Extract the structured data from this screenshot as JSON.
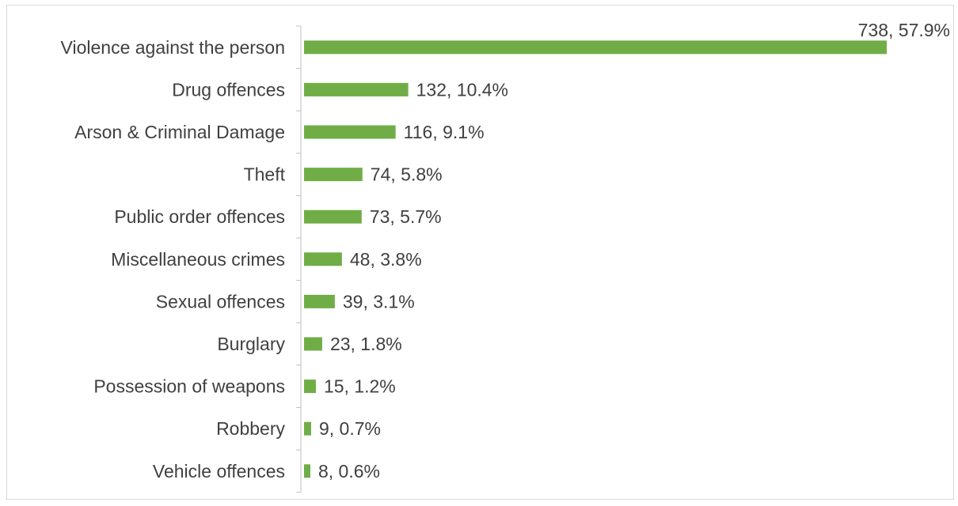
{
  "chart_data": {
    "type": "bar",
    "orientation": "horizontal",
    "title": "",
    "xlabel": "",
    "ylabel": "",
    "categories": [
      "Violence against the person",
      "Drug offences",
      "Arson & Criminal Damage",
      "Theft",
      "Public order offences",
      "Miscellaneous crimes",
      "Sexual offences",
      "Burglary",
      "Possession of weapons",
      "Robbery",
      "Vehicle offences"
    ],
    "values": [
      738,
      132,
      116,
      74,
      73,
      48,
      39,
      23,
      15,
      9,
      8
    ],
    "data_labels": [
      "738, 57.9%",
      "132, 10.4%",
      "116, 9.1%",
      "74, 5.8%",
      "73, 5.7%",
      "48, 3.8%",
      "39, 3.1%",
      "23, 1.8%",
      "15, 1.2%",
      "9, 0.7%",
      "8, 0.6%"
    ],
    "xlim": [
      0,
      738
    ],
    "grid": false,
    "legend": "none",
    "colors": {
      "bar": "#70ad47",
      "axis": "#bfbfbf",
      "text": "#404040",
      "border": "#d9d9d9"
    }
  }
}
